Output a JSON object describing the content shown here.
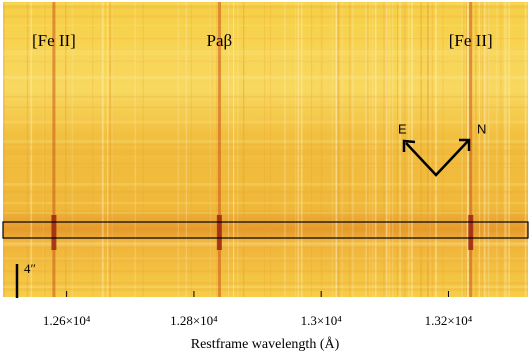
{
  "chart_data": {
    "type": "image",
    "xlabel": "Restframe wavelength (Å)",
    "xlim": [
      12500,
      13325
    ],
    "xticks": [
      {
        "value": 12600,
        "label": "1.26×10⁴"
      },
      {
        "value": 12800,
        "label": "1.28×10⁴"
      },
      {
        "value": 13000,
        "label": "1.3×10⁴"
      },
      {
        "value": 13200,
        "label": "1.32×10⁴"
      }
    ],
    "annotations": [
      {
        "text": "[Fe II]",
        "x": 12580
      },
      {
        "text": "Paβ",
        "x": 12840
      },
      {
        "text": "[Fe II]",
        "x": 13235
      }
    ],
    "compass": {
      "east": "E",
      "north": "N"
    },
    "scale_label": "4″"
  }
}
